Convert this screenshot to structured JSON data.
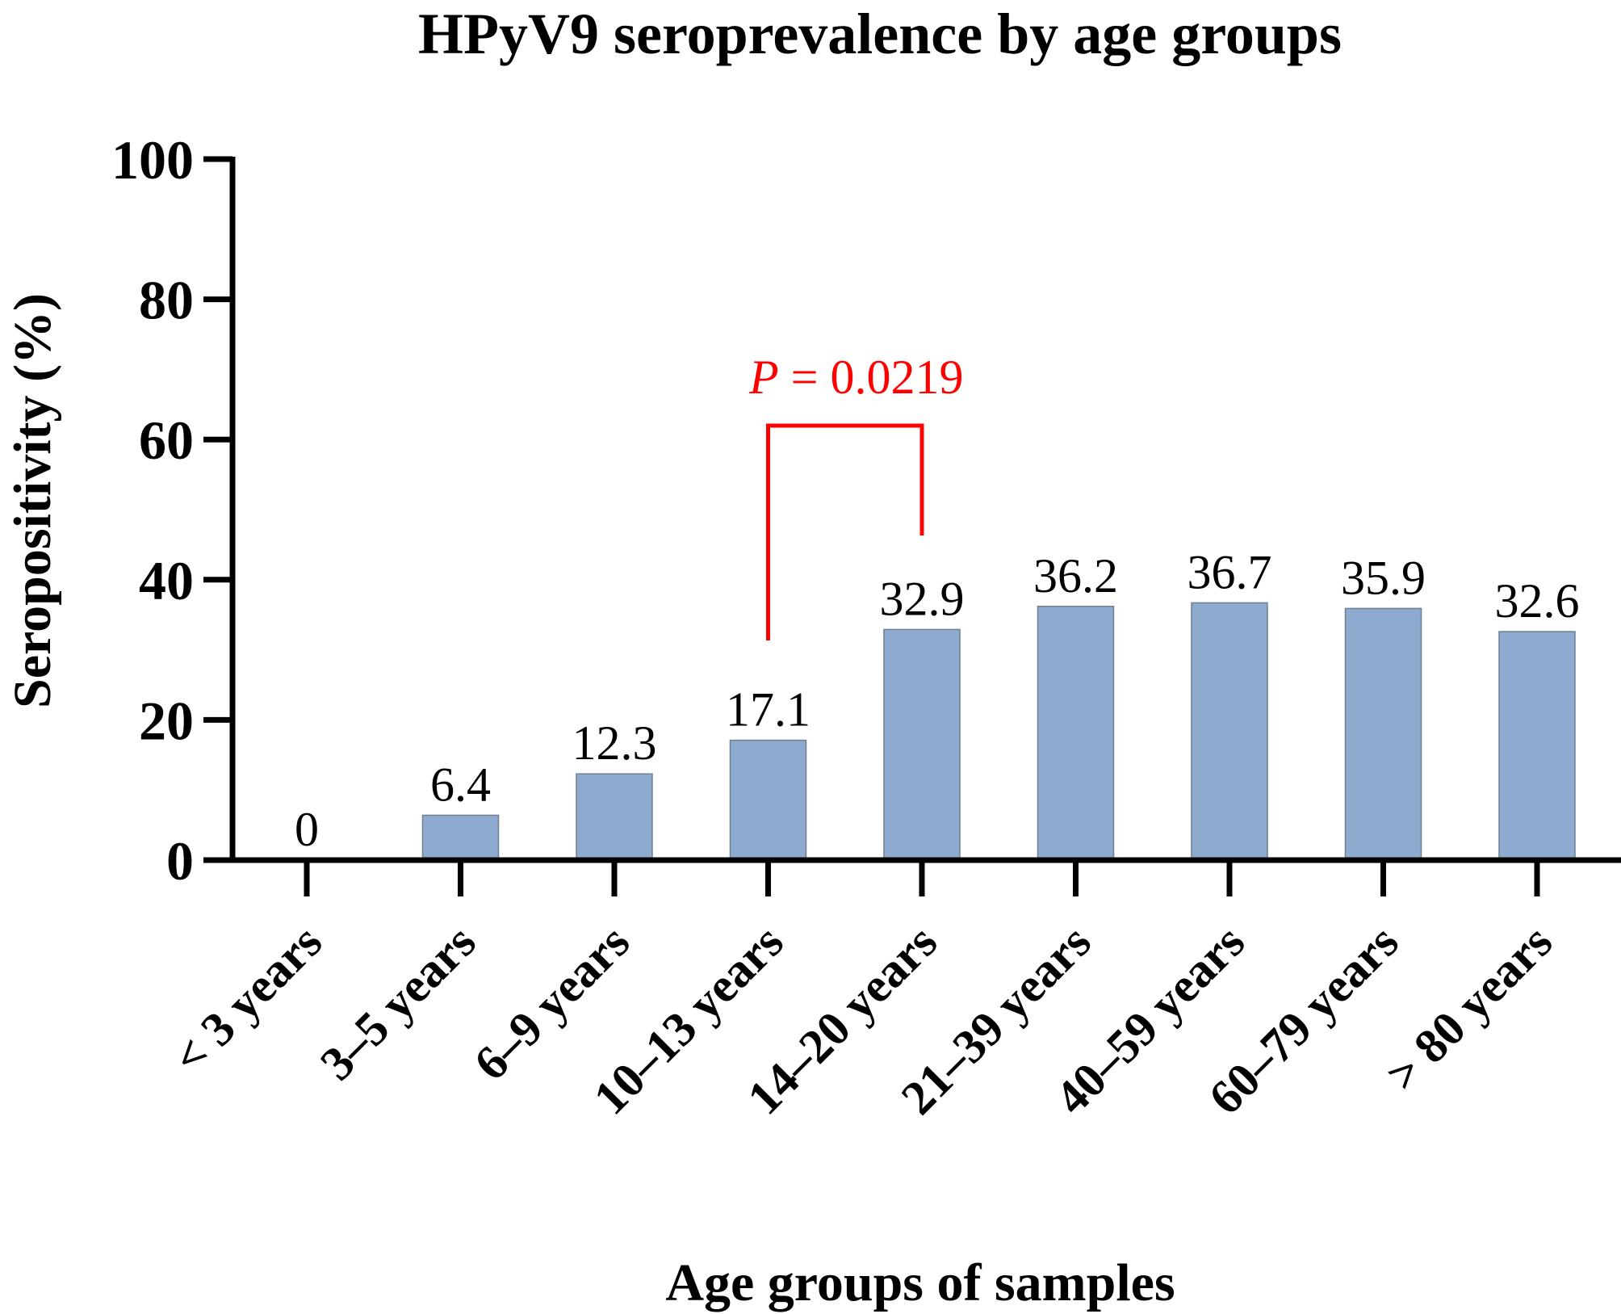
{
  "chart_data": {
    "type": "bar",
    "title": "HPyV9 seroprevalence by age groups",
    "xlabel": "Age groups of samples",
    "ylabel": "Seropositivity (%)",
    "categories": [
      "< 3 years",
      "3–5 years",
      "6–9 years",
      "10–13 years",
      "14–20 years",
      "21–39 years",
      "40–59 years",
      "60–79 years",
      "> 80 years"
    ],
    "values": [
      0,
      6.4,
      12.3,
      17.1,
      32.9,
      36.2,
      36.7,
      35.9,
      32.6
    ],
    "value_labels": [
      "0",
      "6.4",
      "12.3",
      "17.1",
      "32.9",
      "36.2",
      "36.7",
      "35.9",
      "32.6"
    ],
    "ylim": [
      0,
      100
    ],
    "yticks": [
      0,
      20,
      40,
      60,
      80,
      100
    ],
    "ytick_labels": [
      "0",
      "20",
      "40",
      "60",
      "80",
      "100"
    ],
    "grid": false,
    "legend": "none",
    "annotations": [
      {
        "type": "significance-bracket",
        "from_category": "10–13 years",
        "to_category": "14–20 years",
        "italic_part": "P",
        "rest": " = 0.0219",
        "text": "P = 0.0219"
      }
    ]
  },
  "colors": {
    "bar_fill": "#8eaacf",
    "bar_stroke": "#6f7f8f",
    "axis": "#000000",
    "annotation": "#ff0000",
    "text": "#000000"
  }
}
